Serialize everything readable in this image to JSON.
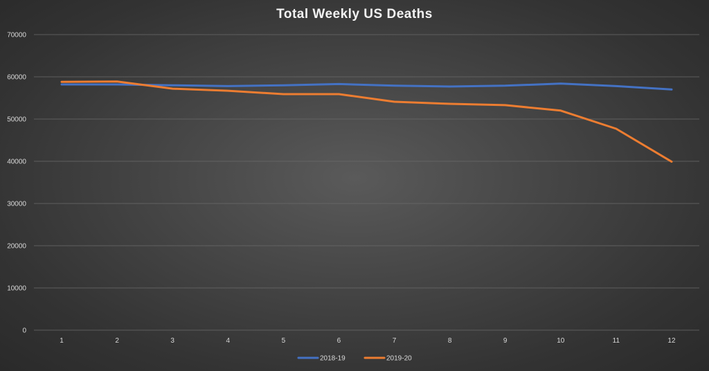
{
  "chart_data": {
    "type": "line",
    "title": "Total Weekly US Deaths",
    "xlabel": "",
    "ylabel": "",
    "x": [
      1,
      2,
      3,
      4,
      5,
      6,
      7,
      8,
      9,
      10,
      11,
      12
    ],
    "ylim": [
      0,
      70000
    ],
    "yticks": [
      0,
      10000,
      20000,
      30000,
      40000,
      50000,
      60000,
      70000
    ],
    "grid": true,
    "legend_position": "bottom",
    "series": [
      {
        "name": "2018-19",
        "color": "#4472c4",
        "values": [
          58200,
          58200,
          58000,
          57800,
          58000,
          58300,
          57900,
          57700,
          57900,
          58400,
          57800,
          57000
        ]
      },
      {
        "name": "2019-20",
        "color": "#ed7d31",
        "values": [
          58800,
          58900,
          57200,
          56700,
          55900,
          55900,
          54100,
          53600,
          53300,
          52000,
          47700,
          39900
        ]
      }
    ]
  }
}
